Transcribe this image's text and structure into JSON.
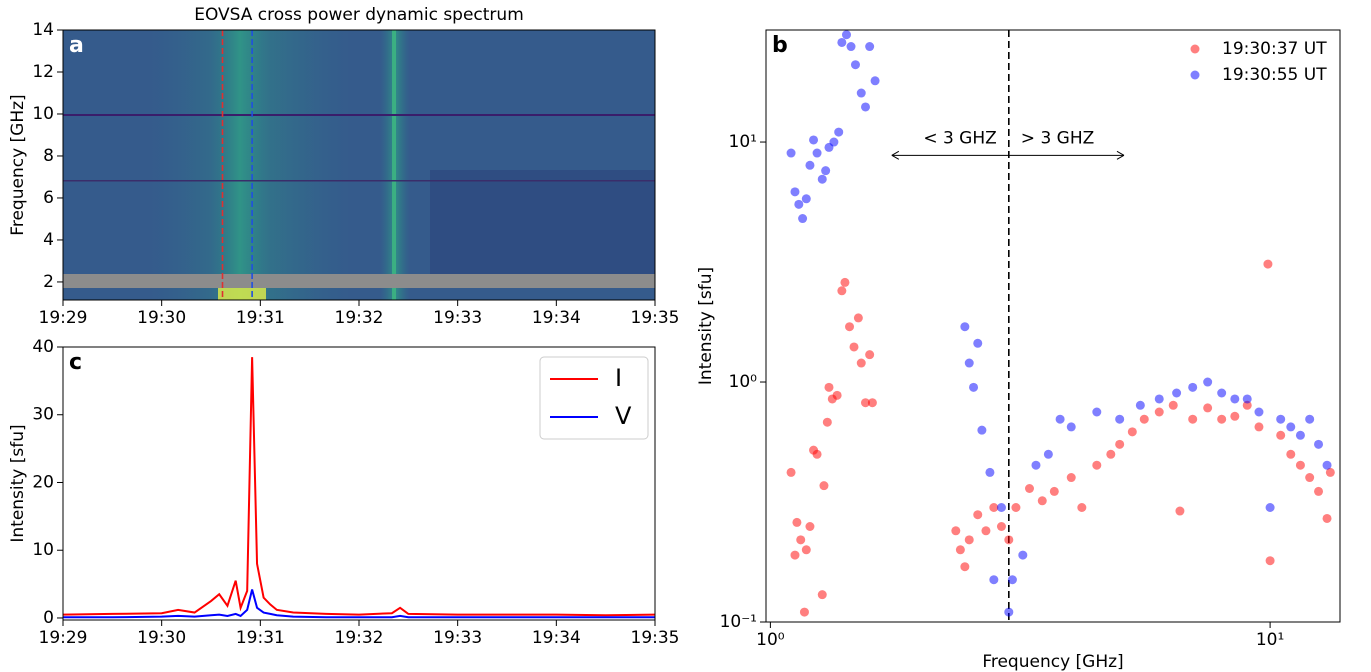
{
  "chart_data": [
    {
      "type": "heatmap",
      "label": "a",
      "title": "EOVSA cross power dynamic spectrum",
      "ylabel": "Frequency [GHz]",
      "xlim": [
        "19:29",
        "19:35"
      ],
      "xticks": [
        "19:29",
        "19:30",
        "19:31",
        "19:32",
        "19:33",
        "19:34",
        "19:35"
      ],
      "ylim": [
        1.14,
        14
      ],
      "yticks": [
        2,
        4,
        6,
        8,
        10,
        12,
        14
      ],
      "markers": [
        {
          "x": "19:30:37",
          "color": "#e03030"
        },
        {
          "x": "19:30:55",
          "color": "#2050e0"
        }
      ]
    },
    {
      "type": "line",
      "label": "c",
      "ylabel": "Intensity [sfu]",
      "xlim": [
        "19:29",
        "19:35"
      ],
      "xticks": [
        "19:29",
        "19:30",
        "19:31",
        "19:32",
        "19:33",
        "19:34",
        "19:35"
      ],
      "ylim": [
        -0.3,
        40
      ],
      "yticks": [
        0,
        10,
        20,
        30,
        40
      ],
      "x": [
        "19:29:00",
        "19:29:30",
        "19:30:00",
        "19:30:10",
        "19:30:20",
        "19:30:30",
        "19:30:35",
        "19:30:40",
        "19:30:45",
        "19:30:48",
        "19:30:52",
        "19:30:55",
        "19:30:58",
        "19:31:02",
        "19:31:06",
        "19:31:10",
        "19:31:20",
        "19:31:40",
        "19:32:00",
        "19:32:20",
        "19:32:25",
        "19:32:30",
        "19:33:00",
        "19:33:30",
        "19:34:00",
        "19:34:30",
        "19:35:00"
      ],
      "series": [
        {
          "name": "I",
          "color": "#ff0000",
          "values": [
            0.5,
            0.6,
            0.7,
            1.2,
            0.8,
            2.5,
            3.5,
            1.8,
            5.5,
            1.5,
            4.0,
            38.5,
            8.0,
            3.0,
            2.0,
            1.2,
            0.8,
            0.6,
            0.5,
            0.7,
            1.5,
            0.6,
            0.5,
            0.5,
            0.5,
            0.4,
            0.5
          ]
        },
        {
          "name": "V",
          "color": "#0000ff",
          "values": [
            0.1,
            0.1,
            0.2,
            0.3,
            0.2,
            0.4,
            0.5,
            0.3,
            0.6,
            0.3,
            1.2,
            4.2,
            1.5,
            0.8,
            0.6,
            0.4,
            0.2,
            0.1,
            0.1,
            0.1,
            0.3,
            0.1,
            0.1,
            0.1,
            0.1,
            0.1,
            0.1
          ]
        }
      ]
    },
    {
      "type": "scatter",
      "label": "b",
      "xlabel": "Frequency [GHz]",
      "ylabel": "Intensity [sfu]",
      "log_x": true,
      "log_y": true,
      "xlim": [
        0.98,
        13.8
      ],
      "ylim": [
        0.1,
        29.3
      ],
      "xticks": [
        {
          "value": 1,
          "label": "10⁰"
        },
        {
          "value": 10,
          "label": "10¹"
        }
      ],
      "yticks": [
        {
          "value": 0.1,
          "label": "10⁻¹"
        },
        {
          "value": 1,
          "label": "10⁰"
        },
        {
          "value": 10,
          "label": "10¹"
        }
      ],
      "vline": 3,
      "annotations": [
        {
          "text": "< 3 GHZ",
          "x_to": 1.75,
          "y": 8.8
        },
        {
          "text": "> 3 GHZ",
          "x_to": 5.1,
          "y": 8.8
        }
      ],
      "series": [
        {
          "name": "19:30:37 UT",
          "color": "#ff0000",
          "x": [
            1.1,
            1.12,
            1.13,
            1.15,
            1.17,
            1.18,
            1.2,
            1.22,
            1.24,
            1.27,
            1.28,
            1.3,
            1.31,
            1.33,
            1.36,
            1.39,
            1.41,
            1.44,
            1.47,
            1.5,
            1.52,
            1.55,
            1.58,
            1.6,
            2.35,
            2.4,
            2.45,
            2.5,
            2.6,
            2.7,
            2.8,
            2.9,
            3.0,
            3.1,
            3.3,
            3.5,
            3.7,
            4.0,
            4.2,
            4.5,
            4.8,
            5.0,
            5.3,
            5.6,
            6.0,
            6.4,
            6.6,
            7.0,
            7.5,
            8.0,
            8.5,
            9.0,
            9.5,
            9.9,
            10.0,
            10.5,
            11.0,
            11.5,
            12.0,
            12.5,
            13.0,
            13.2
          ],
          "values": [
            0.42,
            0.19,
            0.26,
            0.22,
            0.11,
            0.2,
            0.25,
            0.52,
            0.5,
            0.13,
            0.37,
            0.68,
            0.95,
            0.85,
            0.88,
            2.4,
            2.6,
            1.7,
            1.4,
            1.85,
            1.2,
            0.82,
            1.3,
            0.82,
            0.24,
            0.2,
            0.17,
            0.22,
            0.28,
            0.24,
            0.3,
            0.25,
            0.22,
            0.3,
            0.36,
            0.32,
            0.35,
            0.4,
            0.3,
            0.45,
            0.5,
            0.55,
            0.62,
            0.7,
            0.75,
            0.8,
            0.29,
            0.7,
            0.78,
            0.7,
            0.72,
            0.8,
            0.65,
            3.1,
            0.18,
            0.6,
            0.5,
            0.45,
            0.4,
            0.35,
            0.27,
            0.42
          ]
        },
        {
          "name": "19:30:55 UT",
          "color": "#0000ff",
          "x": [
            1.1,
            1.12,
            1.14,
            1.16,
            1.18,
            1.2,
            1.22,
            1.24,
            1.27,
            1.29,
            1.31,
            1.34,
            1.37,
            1.39,
            1.42,
            1.45,
            1.48,
            1.52,
            1.55,
            1.58,
            1.62,
            2.45,
            2.5,
            2.55,
            2.6,
            2.65,
            2.75,
            2.8,
            2.9,
            3.0,
            3.05,
            3.2,
            3.4,
            3.6,
            3.8,
            4.0,
            4.5,
            5.0,
            5.5,
            6.0,
            6.5,
            7.0,
            7.5,
            8.0,
            8.5,
            9.0,
            9.5,
            10.0,
            10.5,
            11.0,
            11.5,
            12.0,
            12.5,
            13.0
          ],
          "values": [
            9,
            6.2,
            5.5,
            4.8,
            5.8,
            8,
            10.2,
            9,
            7,
            7.6,
            9.5,
            10,
            11,
            26,
            28,
            25,
            21,
            16,
            14,
            25,
            18,
            1.7,
            1.2,
            0.95,
            1.45,
            0.63,
            0.42,
            0.15,
            0.3,
            0.11,
            0.15,
            0.19,
            0.45,
            0.5,
            0.7,
            0.65,
            0.75,
            0.7,
            0.8,
            0.85,
            0.9,
            0.95,
            1.0,
            0.9,
            0.85,
            0.85,
            0.75,
            0.3,
            0.7,
            0.65,
            0.6,
            0.7,
            0.55,
            0.45
          ]
        }
      ]
    }
  ]
}
